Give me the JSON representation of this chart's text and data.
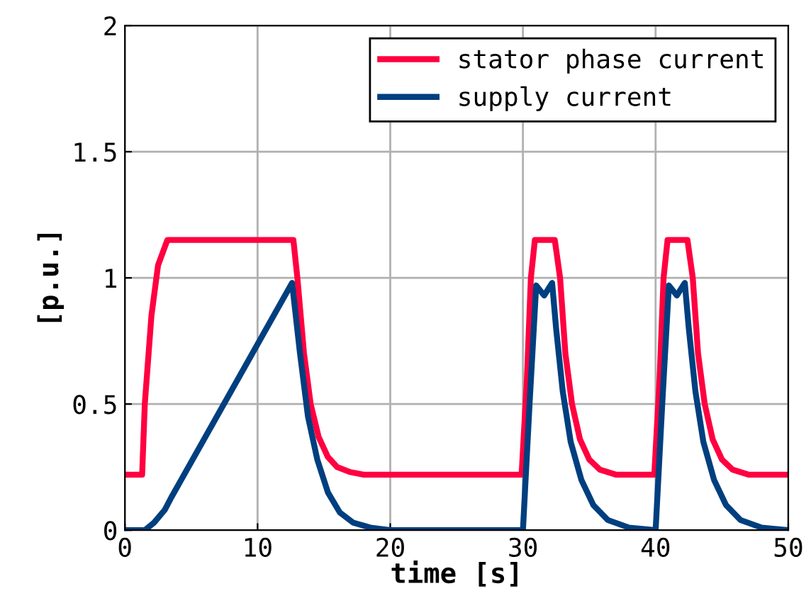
{
  "chart_data": {
    "type": "line",
    "xlabel": "time [s]",
    "ylabel": "[p.u.]",
    "xlim": [
      0,
      50
    ],
    "ylim": [
      0,
      2
    ],
    "xticks": [
      0,
      10,
      20,
      30,
      40,
      50
    ],
    "yticks": [
      0,
      0.5,
      1,
      1.5,
      2
    ],
    "grid": true,
    "legend": "top right",
    "line_style": "solid",
    "series": [
      {
        "name": "stator phase current",
        "color": "#ff0040",
        "x": [
          0,
          1.3,
          1.5,
          2.0,
          2.5,
          3.2,
          12.7,
          13.0,
          13.5,
          14.0,
          14.6,
          15.3,
          16,
          17,
          18,
          29.9,
          30.3,
          30.6,
          30.9,
          32.4,
          32.8,
          33.2,
          33.7,
          34.3,
          35,
          35.8,
          37,
          39.9,
          40.3,
          40.6,
          40.9,
          42.4,
          42.8,
          43.2,
          43.7,
          44.3,
          45,
          45.8,
          47,
          50
        ],
        "values": [
          0.22,
          0.22,
          0.5,
          0.85,
          1.05,
          1.15,
          1.15,
          1.0,
          0.7,
          0.5,
          0.37,
          0.29,
          0.25,
          0.23,
          0.22,
          0.22,
          0.6,
          1.0,
          1.15,
          1.15,
          1.0,
          0.7,
          0.5,
          0.36,
          0.28,
          0.24,
          0.22,
          0.22,
          0.6,
          1.0,
          1.15,
          1.15,
          1.0,
          0.7,
          0.5,
          0.36,
          0.28,
          0.24,
          0.22,
          0.22
        ]
      },
      {
        "name": "supply current",
        "color": "#003f7f",
        "x": [
          0,
          1.5,
          2.2,
          3.0,
          3.5,
          12.6,
          13.2,
          13.8,
          14.5,
          15.3,
          16.2,
          17.2,
          18.5,
          20,
          30.0,
          30.5,
          31.0,
          31.6,
          32.2,
          32.5,
          33,
          33.6,
          34.4,
          35.3,
          36.4,
          38,
          40.0,
          40.5,
          41.0,
          41.6,
          42.2,
          42.5,
          43,
          43.6,
          44.4,
          45.3,
          46.4,
          48,
          50
        ],
        "values": [
          0,
          0,
          0.03,
          0.08,
          0.13,
          0.98,
          0.7,
          0.45,
          0.28,
          0.15,
          0.07,
          0.03,
          0.01,
          0,
          0,
          0.5,
          0.97,
          0.93,
          0.98,
          0.8,
          0.55,
          0.35,
          0.2,
          0.1,
          0.04,
          0.01,
          0,
          0.5,
          0.97,
          0.93,
          0.98,
          0.8,
          0.55,
          0.35,
          0.2,
          0.1,
          0.04,
          0.01,
          0
        ]
      }
    ]
  }
}
